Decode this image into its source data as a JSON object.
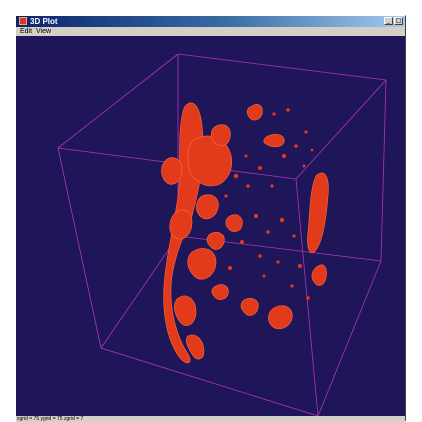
{
  "window": {
    "title": "3D Plot",
    "controls": {
      "minimize": "_",
      "maximize": "□"
    }
  },
  "menu": {
    "items": [
      "Edit",
      "View"
    ]
  },
  "viewport": {
    "background": "#1e1659",
    "box_color": "#b233b9",
    "blob_color": "#e23b1c",
    "blob_highlight": "#ff6a3a"
  },
  "status": {
    "text": "xgrid = 75 ygrid = 75 zgrid = 7"
  }
}
